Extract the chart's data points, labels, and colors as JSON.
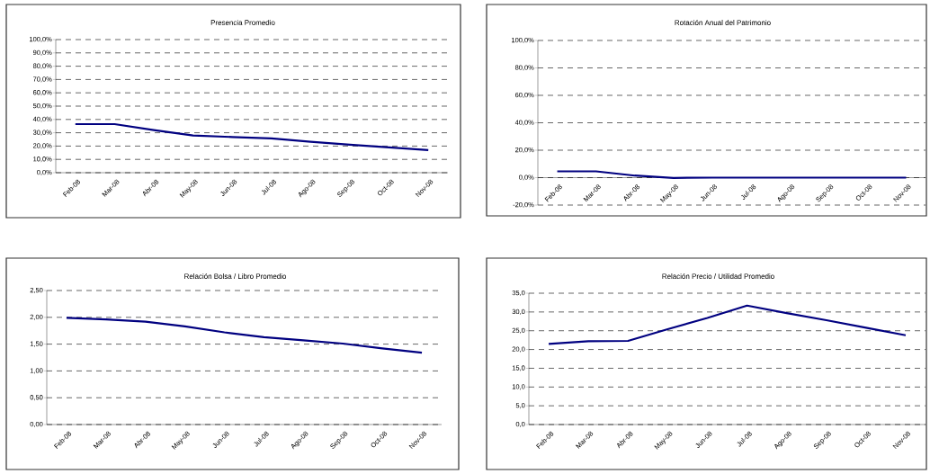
{
  "chart_data": [
    {
      "type": "line",
      "title": "Presencia Promedio",
      "categories": [
        "Feb-08",
        "Mar-08",
        "Abr-08",
        "May-08",
        "Jun-08",
        "Jul-08",
        "Ago-08",
        "Sep-08",
        "Oct-08",
        "Nov-08"
      ],
      "values": [
        36.5,
        36.5,
        32,
        28,
        26.8,
        25.7,
        23.2,
        21,
        19,
        17
      ],
      "color": "#000080",
      "marker": "none",
      "grid": "y",
      "ylim": [
        0,
        100
      ],
      "yticks": [
        {
          "value": 0,
          "label": "0,0%"
        },
        {
          "value": 10,
          "label": "10,0%"
        },
        {
          "value": 20,
          "label": "20,0%"
        },
        {
          "value": 30,
          "label": "30,0%"
        },
        {
          "value": 40,
          "label": "40,0%"
        },
        {
          "value": 50,
          "label": "50,0%"
        },
        {
          "value": 60,
          "label": "60,0%"
        },
        {
          "value": 70,
          "label": "70,0%"
        },
        {
          "value": 80,
          "label": "80,0%"
        },
        {
          "value": 90,
          "label": "90,0%"
        },
        {
          "value": 100,
          "label": "100,0%"
        }
      ]
    },
    {
      "type": "line",
      "title": "Rotación Anual del Patrimonio",
      "categories": [
        "Feb-08",
        "Mar-08",
        "Abr-08",
        "May-08",
        "Jun-08",
        "Jul-08",
        "Ago-08",
        "Sep-08",
        "Oct-08",
        "Nov-08"
      ],
      "values": [
        4.6,
        4.6,
        1.5,
        -0.2,
        0,
        0,
        0,
        0,
        0,
        0
      ],
      "color": "#000080",
      "marker": "none",
      "grid": "y",
      "ylim": [
        -20,
        100
      ],
      "yticks": [
        {
          "value": -20,
          "label": "-20,0%"
        },
        {
          "value": 0,
          "label": "0,0%"
        },
        {
          "value": 20,
          "label": "20,0%"
        },
        {
          "value": 40,
          "label": "40,0%"
        },
        {
          "value": 60,
          "label": "60,0%"
        },
        {
          "value": 80,
          "label": "80,0%"
        },
        {
          "value": 100,
          "label": "100,0%"
        }
      ]
    },
    {
      "type": "line",
      "title": "Relación Bolsa / Libro Promedio",
      "categories": [
        "Feb-08",
        "Mar-08",
        "Abr-08",
        "May-08",
        "Jun-08",
        "Jul-08",
        "Ago-08",
        "Sep-08",
        "Oct-08",
        "Nov-08"
      ],
      "values": [
        1.99,
        1.96,
        1.92,
        1.83,
        1.72,
        1.63,
        1.57,
        1.51,
        1.42,
        1.34
      ],
      "color": "#000080",
      "marker": "none",
      "grid": "y",
      "ylim": [
        0,
        2.5
      ],
      "yticks": [
        {
          "value": 0,
          "label": "0,00"
        },
        {
          "value": 0.5,
          "label": "0,50"
        },
        {
          "value": 1,
          "label": "1,00"
        },
        {
          "value": 1.5,
          "label": "1,50"
        },
        {
          "value": 2,
          "label": "2,00"
        },
        {
          "value": 2.5,
          "label": "2,50"
        }
      ]
    },
    {
      "type": "line",
      "title": "Relación Precio / Utilidad Promedio",
      "categories": [
        "Feb-08",
        "Mar-08",
        "Abr-08",
        "May-08",
        "Jun-08",
        "Jul-08",
        "Ago-08",
        "Sep-08",
        "Oct-08",
        "Nov-08"
      ],
      "values": [
        21.5,
        22.2,
        22.3,
        25.4,
        28.4,
        31.7,
        29.7,
        27.8,
        25.8,
        23.8
      ],
      "color": "#000080",
      "marker": "none",
      "grid": "y",
      "ylim": [
        0,
        35
      ],
      "yticks": [
        {
          "value": 0,
          "label": "0,0"
        },
        {
          "value": 5,
          "label": "5,0"
        },
        {
          "value": 10,
          "label": "10,0"
        },
        {
          "value": 15,
          "label": "15,0"
        },
        {
          "value": 20,
          "label": "20,0"
        },
        {
          "value": 25,
          "label": "25,0"
        },
        {
          "value": 30,
          "label": "30,0"
        },
        {
          "value": 35,
          "label": "35,0"
        }
      ]
    }
  ]
}
